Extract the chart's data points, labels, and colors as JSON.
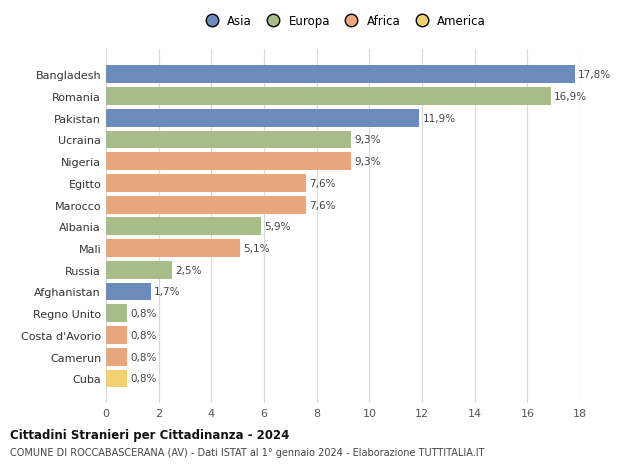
{
  "countries": [
    "Bangladesh",
    "Romania",
    "Pakistan",
    "Ucraina",
    "Nigeria",
    "Egitto",
    "Marocco",
    "Albania",
    "Mali",
    "Russia",
    "Afghanistan",
    "Regno Unito",
    "Costa d'Avorio",
    "Camerun",
    "Cuba"
  ],
  "values": [
    17.8,
    16.9,
    11.9,
    9.3,
    9.3,
    7.6,
    7.6,
    5.9,
    5.1,
    2.5,
    1.7,
    0.8,
    0.8,
    0.8,
    0.8
  ],
  "labels": [
    "17,8%",
    "16,9%",
    "11,9%",
    "9,3%",
    "9,3%",
    "7,6%",
    "7,6%",
    "5,9%",
    "5,1%",
    "2,5%",
    "1,7%",
    "0,8%",
    "0,8%",
    "0,8%",
    "0,8%"
  ],
  "continents": [
    "Asia",
    "Europa",
    "Asia",
    "Europa",
    "Africa",
    "Africa",
    "Africa",
    "Europa",
    "Africa",
    "Europa",
    "Asia",
    "Europa",
    "Africa",
    "Africa",
    "America"
  ],
  "colors": {
    "Asia": "#6b8cba",
    "Europa": "#a8bc8a",
    "Africa": "#e8a87c",
    "America": "#f0d070"
  },
  "legend_order": [
    "Asia",
    "Europa",
    "Africa",
    "America"
  ],
  "title": "Cittadini Stranieri per Cittadinanza - 2024",
  "subtitle": "COMUNE DI ROCCABASCERANA (AV) - Dati ISTAT al 1° gennaio 2024 - Elaborazione TUTTITALIA.IT",
  "xlim": [
    0,
    18
  ],
  "xticks": [
    0,
    2,
    4,
    6,
    8,
    10,
    12,
    14,
    16,
    18
  ],
  "bg_color": "#ffffff",
  "grid_color": "#d8d8d8"
}
